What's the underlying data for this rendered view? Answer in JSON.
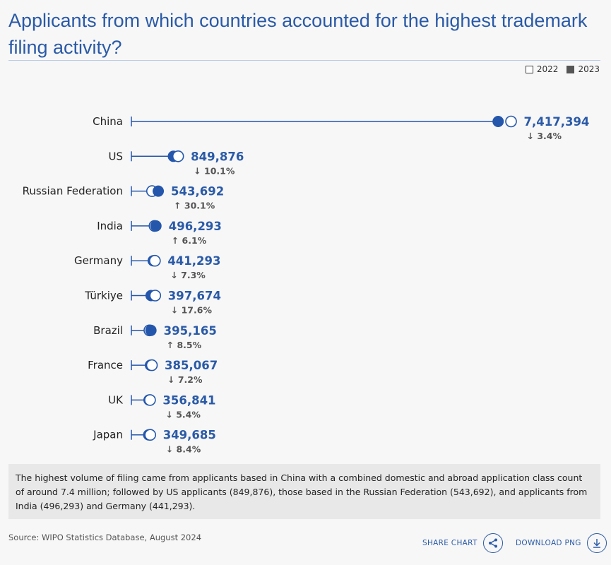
{
  "title": "Applicants from which countries accounted for the highest trademark filing activity?",
  "legend": {
    "y2022": "2022",
    "y2023": "2023"
  },
  "colors": {
    "accent": "#2a5aa7",
    "dot": "#2457ac",
    "text": "#333333"
  },
  "chart_data": {
    "type": "dumbbell",
    "unit": "application class count",
    "series_names": [
      "2022",
      "2023"
    ],
    "rows": [
      {
        "country": "China",
        "v2023": 7417394,
        "v2022": 7678620,
        "value_label": "7,417,394",
        "change_label": "3.4%",
        "direction": "down"
      },
      {
        "country": "US",
        "v2023": 849876,
        "v2022": 945411,
        "value_label": "849,876",
        "change_label": "10.1%",
        "direction": "down"
      },
      {
        "country": "Russian Federation",
        "v2023": 543692,
        "v2022": 417903,
        "value_label": "543,692",
        "change_label": "30.1%",
        "direction": "up"
      },
      {
        "country": "India",
        "v2023": 496293,
        "v2022": 467835,
        "value_label": "496,293",
        "change_label": "6.1%",
        "direction": "up"
      },
      {
        "country": "Germany",
        "v2023": 441293,
        "v2022": 476022,
        "value_label": "441,293",
        "change_label": "7.3%",
        "direction": "down"
      },
      {
        "country": "Türkiye",
        "v2023": 397674,
        "v2022": 482612,
        "value_label": "397,674",
        "change_label": "17.6%",
        "direction": "down"
      },
      {
        "country": "Brazil",
        "v2023": 395165,
        "v2022": 364207,
        "value_label": "395,165",
        "change_label": "8.5%",
        "direction": "up"
      },
      {
        "country": "France",
        "v2023": 385067,
        "v2022": 414943,
        "value_label": "385,067",
        "change_label": "7.2%",
        "direction": "down"
      },
      {
        "country": "UK",
        "v2023": 356841,
        "v2022": 377211,
        "value_label": "356,841",
        "change_label": "5.4%",
        "direction": "down"
      },
      {
        "country": "Japan",
        "v2023": 349685,
        "v2022": 381752,
        "value_label": "349,685",
        "change_label": "8.4%",
        "direction": "down"
      }
    ]
  },
  "summary": "The highest volume of filing came from applicants based in China with a combined domestic and abroad application class count of around 7.4 million; followed by US applicants (849,876), those based in the Russian Federation (543,692), and applicants from India (496,293) and Germany (441,293).",
  "source": "Source: WIPO Statistics Database, August 2024",
  "actions": {
    "share": "SHARE CHART",
    "download": "DOWNLOAD PNG"
  }
}
